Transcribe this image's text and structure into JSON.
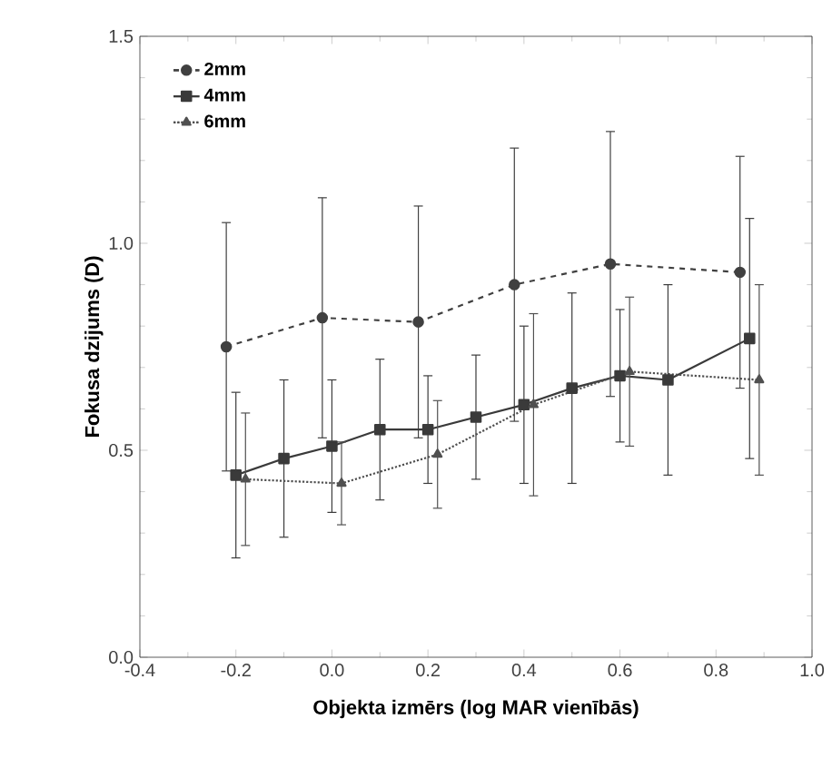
{
  "chart_data": {
    "type": "line",
    "xlabel": "Objekta izmērs (log MAR vienībās)",
    "ylabel": "Fokusa dzijums (D)",
    "xlim": [
      -0.4,
      1.0
    ],
    "xticks": [
      {
        "value": -0.4,
        "label": "-0.4"
      },
      {
        "value": -0.2,
        "label": "-0.2"
      },
      {
        "value": 0.0,
        "label": "0.0"
      },
      {
        "value": 0.2,
        "label": "0.2"
      },
      {
        "value": 0.4,
        "label": "0.4"
      },
      {
        "value": 0.6,
        "label": "0.6"
      },
      {
        "value": 0.8,
        "label": "0.8"
      },
      {
        "value": 1.0,
        "label": "1.0"
      }
    ],
    "ylim": [
      0.0,
      1.5
    ],
    "yticks": [
      {
        "value": 0.0,
        "label": "0.0"
      },
      {
        "value": 0.5,
        "label": "0.5"
      },
      {
        "value": 1.0,
        "label": "1.0"
      },
      {
        "value": 1.5,
        "label": "1.5"
      }
    ],
    "grid": false,
    "legend": "top left",
    "series": [
      {
        "name": "2mm",
        "color": "#404040",
        "marker": "circle",
        "line_style": "dashed",
        "x": [
          -0.22,
          -0.02,
          0.18,
          0.38,
          0.58,
          0.85
        ],
        "values": [
          0.75,
          0.82,
          0.81,
          0.9,
          0.95,
          0.93
        ],
        "errors": [
          0.3,
          0.29,
          0.28,
          0.33,
          0.32,
          0.28
        ]
      },
      {
        "name": "4mm",
        "color": "#3a3a3a",
        "marker": "square",
        "line_style": "solid",
        "x": [
          -0.2,
          -0.1,
          0.0,
          0.1,
          0.2,
          0.3,
          0.4,
          0.5,
          0.6,
          0.7,
          0.87
        ],
        "values": [
          0.44,
          0.48,
          0.51,
          0.55,
          0.55,
          0.58,
          0.61,
          0.65,
          0.68,
          0.67,
          0.77
        ],
        "errors": [
          0.2,
          0.19,
          0.16,
          0.17,
          0.13,
          0.15,
          0.19,
          0.23,
          0.16,
          0.23,
          0.29
        ]
      },
      {
        "name": "6mm",
        "color": "#505050",
        "marker": "triangle",
        "line_style": "dotted",
        "x": [
          -0.18,
          0.02,
          0.22,
          0.42,
          0.62,
          0.89
        ],
        "values": [
          0.43,
          0.42,
          0.49,
          0.61,
          0.69,
          0.67
        ],
        "errors": [
          0.16,
          0.1,
          0.13,
          0.22,
          0.18,
          0.23
        ]
      }
    ]
  }
}
